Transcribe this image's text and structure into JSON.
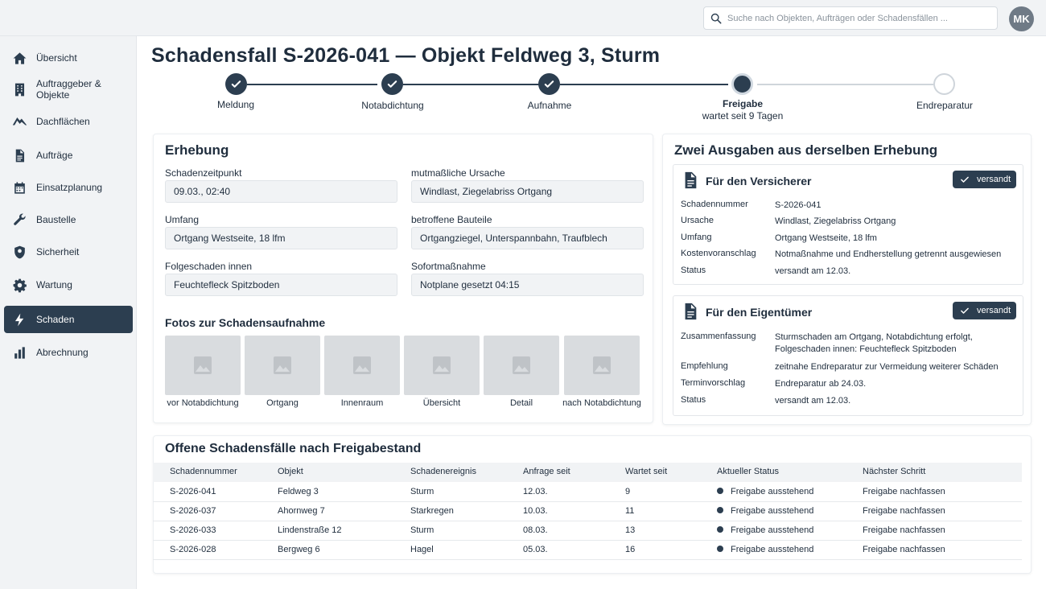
{
  "header": {
    "search_placeholder": "Suche nach Objekten, Aufträgen oder Schadensfällen ...",
    "avatar_initials": "MK"
  },
  "sidebar": {
    "items": [
      {
        "label": "Übersicht",
        "icon": "home-icon"
      },
      {
        "label": "Auftraggeber & Objekte",
        "icon": "building-icon"
      },
      {
        "label": "Dachflächen",
        "icon": "roof-icon"
      },
      {
        "label": "Aufträge",
        "icon": "document-icon"
      },
      {
        "label": "Einsatzplanung",
        "icon": "calendar-icon"
      },
      {
        "label": "Baustelle",
        "icon": "wrench-icon"
      },
      {
        "label": "Sicherheit",
        "icon": "shield-icon"
      },
      {
        "label": "Wartung",
        "icon": "gear-icon"
      },
      {
        "label": "Schaden",
        "icon": "lightning-icon",
        "active": true
      },
      {
        "label": "Abrechnung",
        "icon": "bar-chart-icon"
      }
    ]
  },
  "page": {
    "title": "Schadensfall S-2026-041 — Objekt Feldweg 3, Sturm"
  },
  "stepper": {
    "steps": [
      {
        "label": "Meldung",
        "state": "done"
      },
      {
        "label": "Notabdichtung",
        "state": "done"
      },
      {
        "label": "Aufnahme",
        "state": "done"
      },
      {
        "label": "Freigabe",
        "state": "current",
        "sub": "wartet seit 9 Tagen"
      },
      {
        "label": "Endreparatur",
        "state": "pending"
      }
    ]
  },
  "erhebung": {
    "title": "Erhebung",
    "fields": {
      "schadenzeitpunkt": {
        "label": "Schadenzeitpunkt",
        "value": "09.03., 02:40"
      },
      "ursache": {
        "label": "mutmaßliche Ursache",
        "value": "Windlast, Ziegelabriss Ortgang"
      },
      "umfang": {
        "label": "Umfang",
        "value": "Ortgang Westseite, 18 lfm"
      },
      "bauteile": {
        "label": "betroffene Bauteile",
        "value": "Ortgangziegel, Unterspannbahn, Traufblech"
      },
      "folgeschaden": {
        "label": "Folgeschaden innen",
        "value": "Feuchtefleck Spitzboden"
      },
      "sofort": {
        "label": "Sofortmaßnahme",
        "value": "Notplane gesetzt 04:15"
      }
    },
    "photos_title": "Fotos zur Schadensaufnahme",
    "photos": [
      "vor Notabdichtung",
      "Ortgang",
      "Innenraum",
      "Übersicht",
      "Detail",
      "nach Notabdichtung"
    ]
  },
  "ausgaben": {
    "title": "Zwei Ausgaben aus derselben Erhebung",
    "versicherer": {
      "title": "Für den Versicherer",
      "badge": "versandt",
      "rows": [
        {
          "k": "Schadennummer",
          "v": "S-2026-041"
        },
        {
          "k": "Ursache",
          "v": "Windlast, Ziegelabriss Ortgang"
        },
        {
          "k": "Umfang",
          "v": "Ortgang Westseite, 18 lfm"
        },
        {
          "k": "Kostenvoranschlag",
          "v": "Notmaßnahme und Endherstellung getrennt ausgewiesen"
        },
        {
          "k": "Status",
          "v": "versandt am 12.03."
        }
      ]
    },
    "eigentuemer": {
      "title": "Für den Eigentümer",
      "badge": "versandt",
      "rows": [
        {
          "k": "Zusammenfassung",
          "v": "Sturmschaden am Ortgang, Notabdichtung erfolgt, Folgeschaden innen: Feuchtefleck Spitzboden"
        },
        {
          "k": "Empfehlung",
          "v": "zeitnahe Endreparatur zur Vermeidung weiterer Schäden"
        },
        {
          "k": "Terminvorschlag",
          "v": "Endreparatur ab 24.03."
        },
        {
          "k": "Status",
          "v": "versandt am 12.03."
        }
      ]
    }
  },
  "offene": {
    "title": "Offene Schadensfälle nach Freigabestand",
    "columns": [
      "Schadennummer",
      "Objekt",
      "Schadenereignis",
      "Anfrage seit",
      "Wartet seit",
      "Aktueller Status",
      "Nächster Schritt"
    ],
    "rows": [
      [
        "S-2026-041",
        "Feldweg 3",
        "Sturm",
        "12.03.",
        "9",
        "Freigabe ausstehend",
        "Freigabe nachfassen"
      ],
      [
        "S-2026-037",
        "Ahornweg 7",
        "Starkregen",
        "10.03.",
        "11",
        "Freigabe ausstehend",
        "Freigabe nachfassen"
      ],
      [
        "S-2026-033",
        "Lindenstraße 12",
        "Sturm",
        "08.03.",
        "13",
        "Freigabe ausstehend",
        "Freigabe nachfassen"
      ],
      [
        "S-2026-028",
        "Bergweg 6",
        "Hagel",
        "05.03.",
        "16",
        "Freigabe ausstehend",
        "Freigabe nachfassen"
      ]
    ]
  },
  "colors": {
    "accent": "#2c3e50",
    "background": "#f1f3f5"
  }
}
